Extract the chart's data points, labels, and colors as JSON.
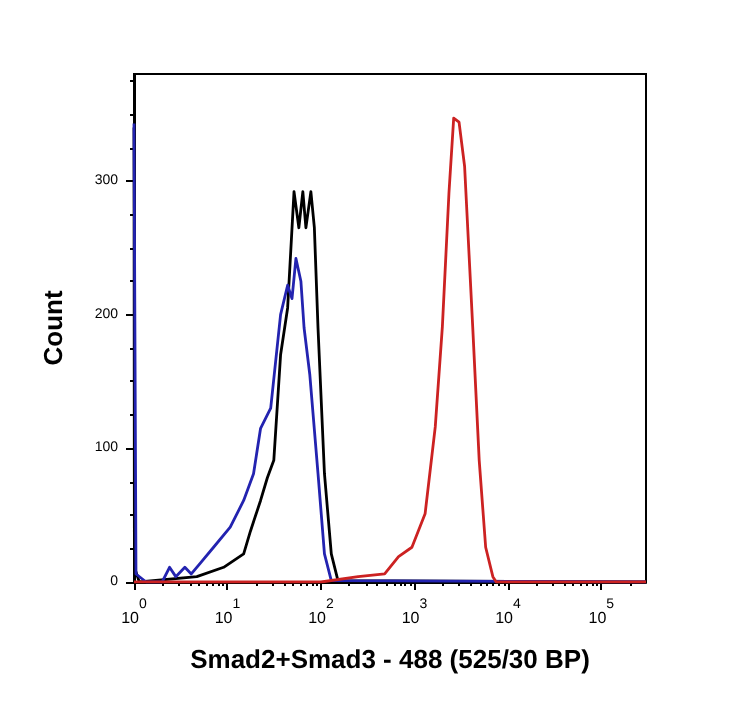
{
  "chart_data": {
    "type": "line",
    "xlabel": "Smad2+Smad3 - 488 (525/30 BP)",
    "ylabel": "Count",
    "log": "x",
    "xlim": [
      1,
      300000
    ],
    "ylim": [
      0,
      380
    ],
    "xticks": [
      {
        "value": 1,
        "label": "10$^{0}$"
      },
      {
        "value": 10,
        "label": "10$^{1}$"
      },
      {
        "value": 100,
        "label": "10$^{2}$"
      },
      {
        "value": 1000,
        "label": "10$^{3}$"
      },
      {
        "value": 10000,
        "label": "10$^{4}$"
      },
      {
        "value": 100000,
        "label": "10$^{5}$"
      }
    ],
    "yticks": [
      0,
      100,
      200,
      300
    ],
    "grid": false,
    "marker": "none",
    "line_style": "solid",
    "series": [
      {
        "color": "#000000",
        "x": [
          1,
          1.01,
          1.14,
          4.7,
          9.1,
          14.9,
          17.6,
          22.6,
          26.7,
          31.3,
          37,
          44,
          51.5,
          58,
          64,
          69,
          78,
          85,
          93,
          109,
          129,
          152,
          300000
        ],
        "values": [
          340,
          11,
          0,
          4,
          11,
          21,
          38,
          61,
          78,
          91,
          170,
          205,
          292,
          265,
          292,
          265,
          292,
          265,
          190,
          81,
          21,
          1,
          0
        ]
      },
      {
        "color": "#2323b0",
        "x": [
          1,
          1.05,
          1.35,
          2,
          2.4,
          2.8,
          3.5,
          4.1,
          5.1,
          7.1,
          10.7,
          14.9,
          19,
          22.6,
          29,
          37,
          44,
          49,
          54,
          61,
          66,
          76,
          93,
          109,
          129,
          300000
        ],
        "values": [
          343,
          6,
          0,
          0,
          11,
          4,
          11,
          6,
          14,
          26,
          41,
          61,
          81,
          115,
          130,
          200,
          222,
          212,
          242,
          225,
          190,
          155,
          81,
          21,
          1,
          0
        ]
      },
      {
        "color": "#cc2222",
        "x": [
          1,
          100,
          250,
          480,
          676,
          940,
          1300,
          1670,
          1990,
          2340,
          2630,
          3000,
          3440,
          4200,
          4930,
          5780,
          6900,
          7500,
          300000
        ],
        "values": [
          0,
          0,
          4,
          6,
          19,
          26,
          51,
          116,
          191,
          291,
          347,
          344,
          311,
          191,
          91,
          26,
          4,
          0,
          0
        ]
      }
    ]
  }
}
